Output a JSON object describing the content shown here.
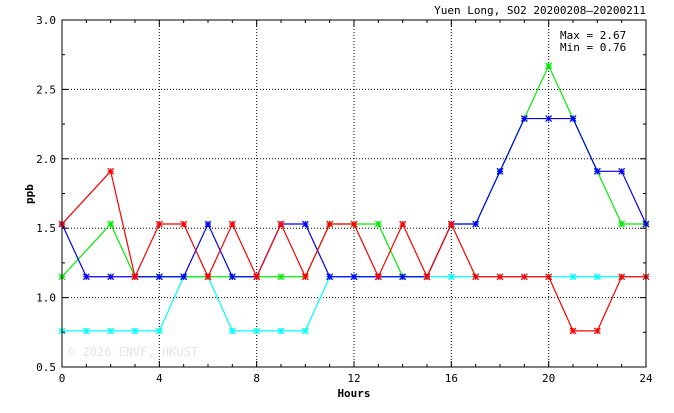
{
  "chart_data": {
    "type": "line",
    "title": "Yuen Long, SO2 20200208–20200211",
    "xlabel": "Hours",
    "ylabel": "ppb",
    "xlim": [
      0,
      24
    ],
    "ylim": [
      0.5,
      3.0
    ],
    "xticks": [
      0,
      4,
      8,
      12,
      16,
      20,
      24
    ],
    "yticks": [
      "0.5",
      "1.0",
      "1.5",
      "2.0",
      "2.5",
      "3.0"
    ],
    "grid": true,
    "annotations": {
      "max": "Max = 2.67",
      "min": "Min = 0.76"
    },
    "watermark": "© 2026 ENVF, HKUST",
    "x": [
      0,
      1,
      2,
      3,
      4,
      5,
      6,
      7,
      8,
      9,
      10,
      11,
      12,
      13,
      14,
      15,
      16,
      17,
      18,
      19,
      20,
      21,
      22,
      23,
      24
    ],
    "series": [
      {
        "name": "cyan",
        "color": "#00ffff",
        "values": [
          0.76,
          0.76,
          0.76,
          0.76,
          0.76,
          1.15,
          1.15,
          0.76,
          0.76,
          0.76,
          0.76,
          1.15,
          1.15,
          1.15,
          1.15,
          1.15,
          1.15,
          1.15,
          1.15,
          1.15,
          1.15,
          1.15,
          1.15,
          1.15,
          1.15
        ]
      },
      {
        "name": "green",
        "color": "#00ee00",
        "values": [
          1.15,
          null,
          1.53,
          1.15,
          1.15,
          1.15,
          1.15,
          1.15,
          1.15,
          1.15,
          1.15,
          1.53,
          1.53,
          1.53,
          1.15,
          1.15,
          1.53,
          1.53,
          1.91,
          2.29,
          2.67,
          2.29,
          1.91,
          1.53,
          1.53
        ]
      },
      {
        "name": "blue",
        "color": "#0000ff",
        "values": [
          1.53,
          1.15,
          1.15,
          1.15,
          1.15,
          1.15,
          1.53,
          1.15,
          1.15,
          1.53,
          1.53,
          1.15,
          1.15,
          1.15,
          1.15,
          1.15,
          1.53,
          1.53,
          1.91,
          2.29,
          2.29,
          2.29,
          1.91,
          1.91,
          1.53
        ]
      },
      {
        "name": "red",
        "color": "#ff0000",
        "values": [
          1.53,
          null,
          1.91,
          1.15,
          1.53,
          1.53,
          1.15,
          1.53,
          1.15,
          1.53,
          1.15,
          1.53,
          1.53,
          1.15,
          1.53,
          1.15,
          1.53,
          1.15,
          1.15,
          1.15,
          1.15,
          0.76,
          0.76,
          1.15,
          1.15
        ]
      }
    ]
  }
}
